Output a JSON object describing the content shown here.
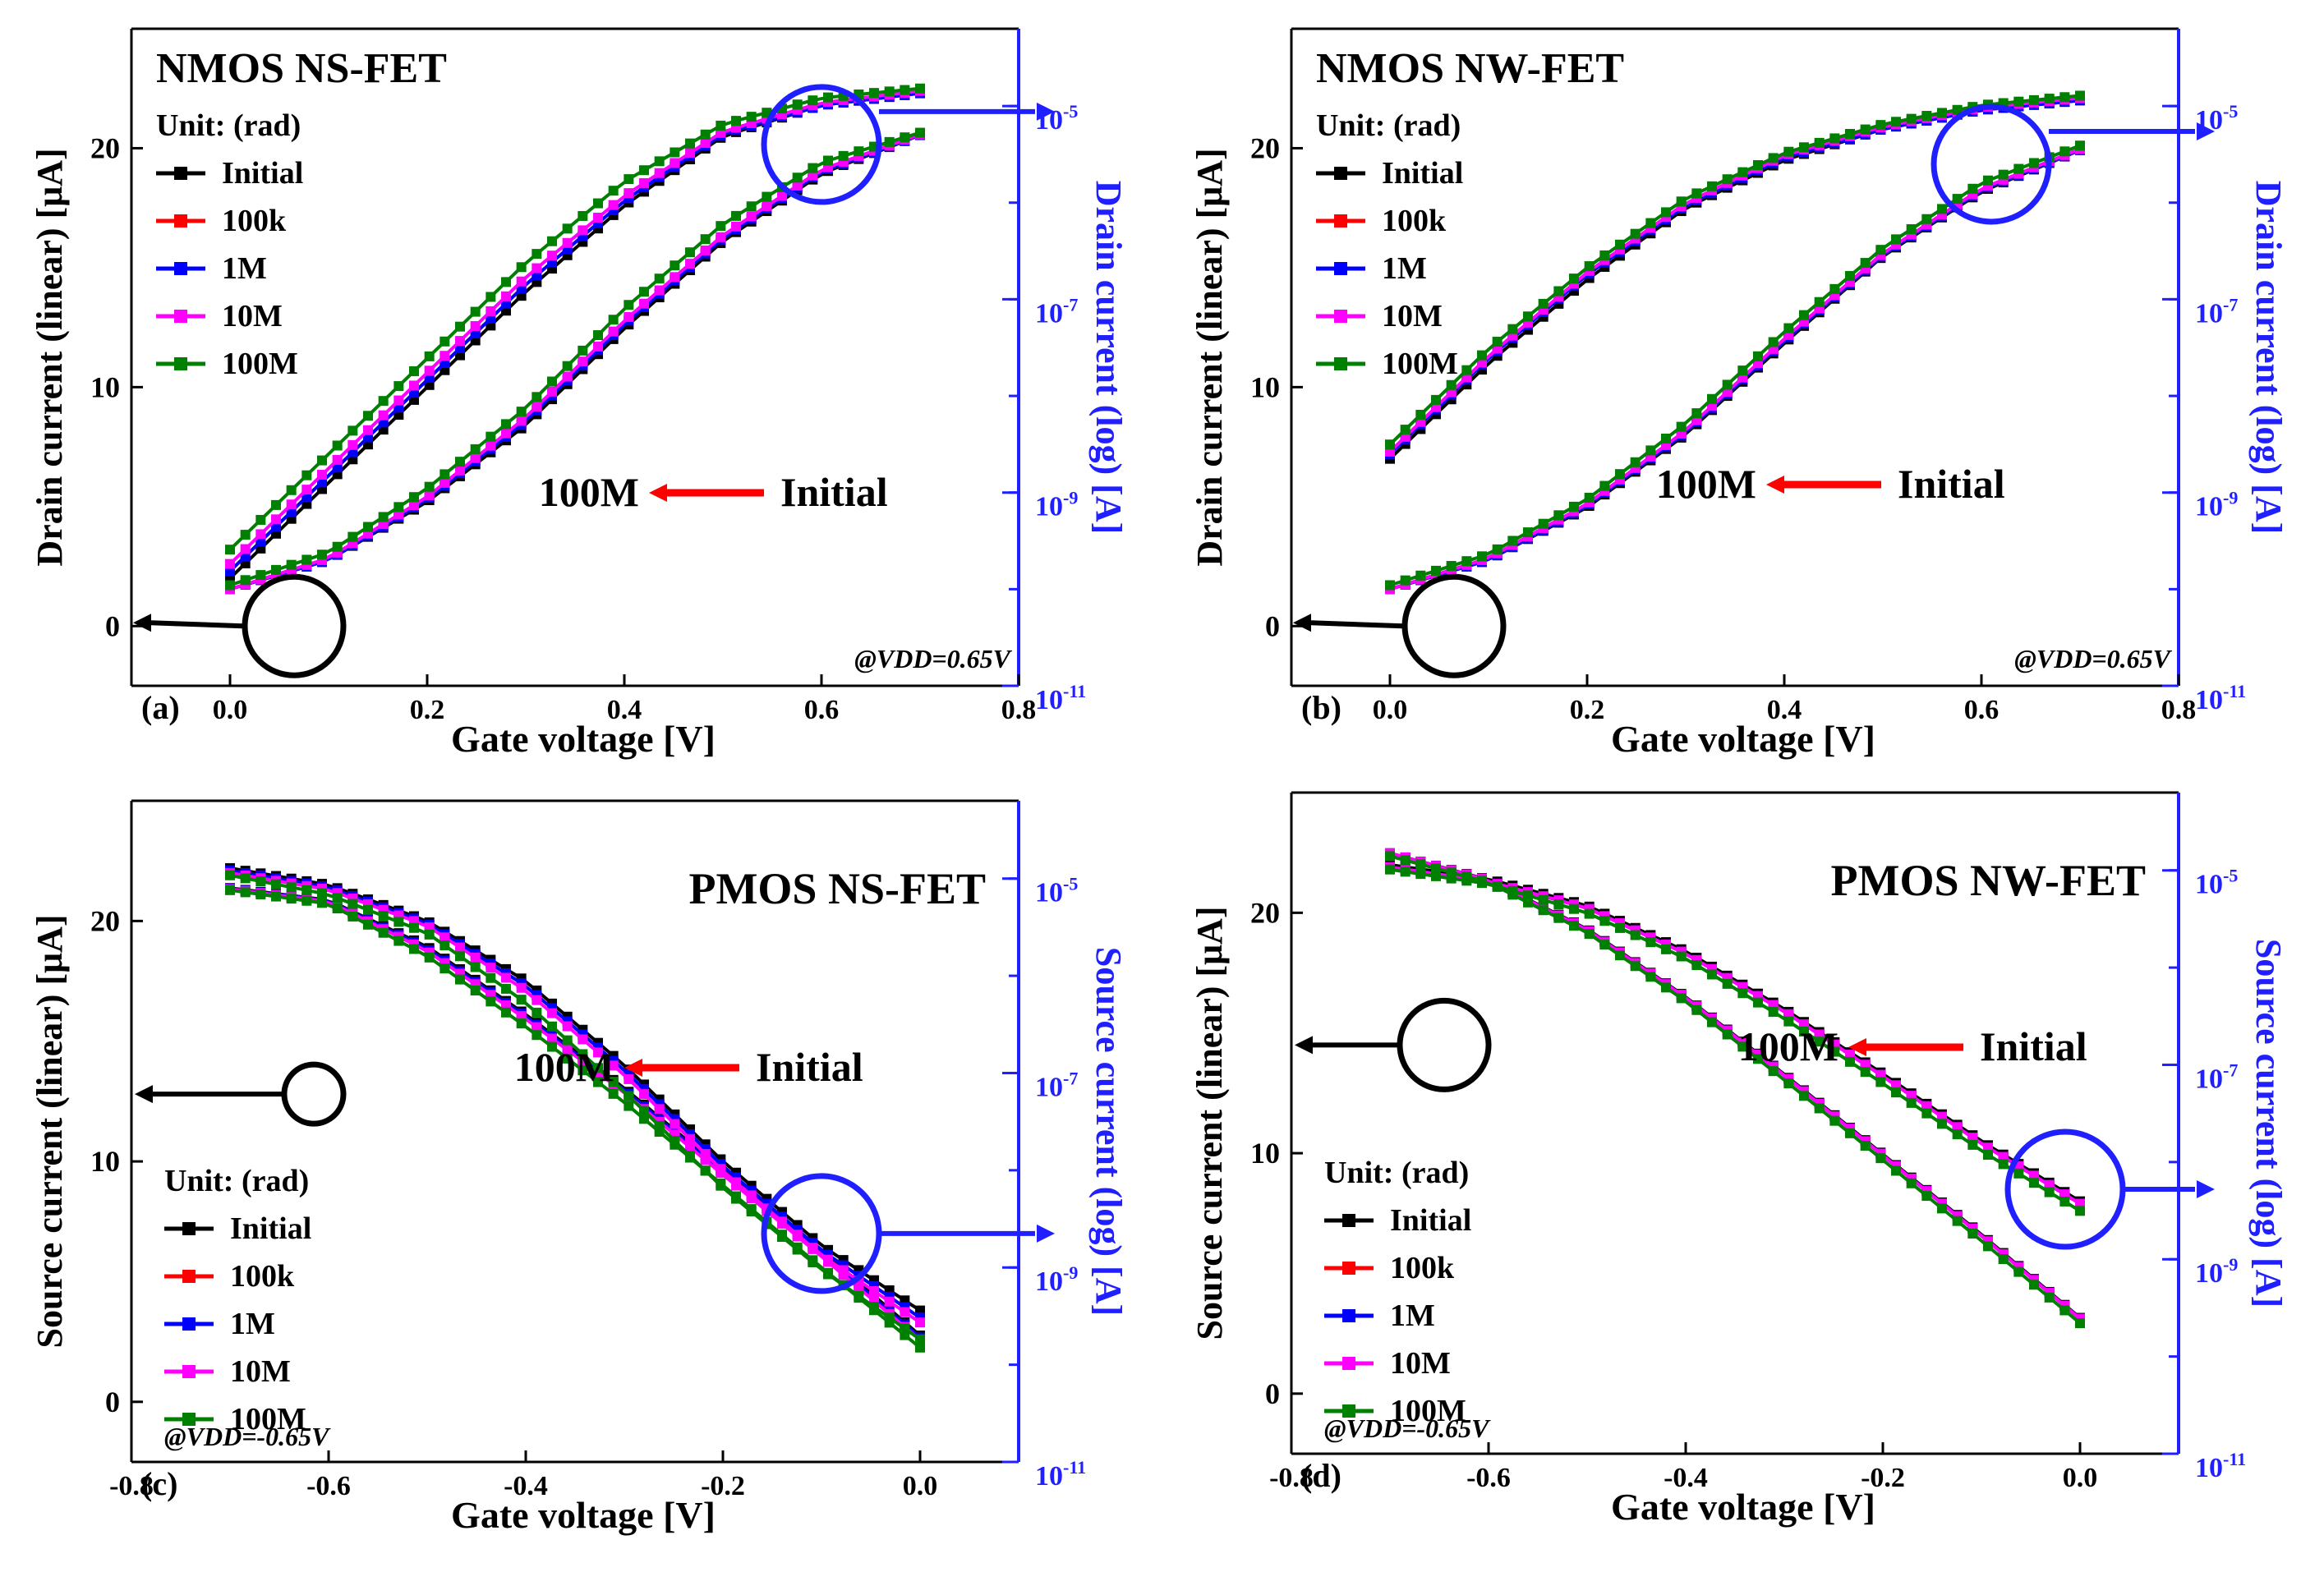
{
  "figure": {
    "colors": {
      "initial": "#000000",
      "100k": "#ff0000",
      "1M": "#0000ff",
      "10M": "#ff00ff",
      "100M": "#008000",
      "log_axis": "#1f1fff",
      "arrow": "#ff0000"
    }
  },
  "chart_data": [
    {
      "type": "line",
      "panel_label": "(a)",
      "title": "NMOS NS-FET",
      "xlabel": "Gate voltage [V]",
      "ylabel": "Drain current (linear) [μA]",
      "y2label": "Drain current (log) [A]",
      "xlim": [
        -0.1,
        0.8
      ],
      "ylim": [
        -2.5,
        25
      ],
      "xticks": [
        "0.0",
        "0.2",
        "0.4",
        "0.6",
        "0.8"
      ],
      "yticks": [
        "0",
        "10",
        "20"
      ],
      "y2ticks": [
        "10-11",
        "10-9",
        "10-7",
        "10-5"
      ],
      "legend_title": "Unit: (rad)",
      "legend_position": "top-left",
      "annotation_from": "Initial",
      "annotation_to": "100M",
      "bias_note": "@VDD=0.65V",
      "x": [
        0.0,
        0.1,
        0.2,
        0.3,
        0.4,
        0.5,
        0.6,
        0.7
      ],
      "series": [
        {
          "name": "Initial",
          "linear": [
            2.0,
            6.0,
            10.0,
            14.0,
            17.6,
            20.5,
            21.8,
            22.3
          ],
          "log": [
            1e-10,
            2e-10,
            8e-10,
            5e-09,
            5e-08,
            4e-07,
            2e-06,
            5e-06
          ]
        },
        {
          "name": "100k",
          "linear": [
            2.3,
            6.3,
            10.3,
            14.3,
            17.8,
            20.6,
            21.8,
            22.3
          ],
          "log": [
            1e-10,
            2e-10,
            8.5e-10,
            5.5e-09,
            5.5e-08,
            4.3e-07,
            2.1e-06,
            5e-06
          ]
        },
        {
          "name": "1M",
          "linear": [
            2.3,
            6.3,
            10.3,
            14.3,
            17.8,
            20.6,
            21.8,
            22.3
          ],
          "log": [
            1e-10,
            2e-10,
            8.5e-10,
            5.5e-09,
            5.5e-08,
            4.3e-07,
            2.1e-06,
            5e-06
          ]
        },
        {
          "name": "10M",
          "linear": [
            2.6,
            6.6,
            10.6,
            14.6,
            18.0,
            20.7,
            21.9,
            22.4
          ],
          "log": [
            1e-10,
            2.1e-10,
            9e-10,
            6e-09,
            6e-08,
            4.6e-07,
            2.2e-06,
            5.1e-06
          ]
        },
        {
          "name": "100M",
          "linear": [
            3.2,
            7.2,
            11.2,
            15.2,
            18.6,
            21.0,
            22.1,
            22.5
          ],
          "log": [
            1.1e-10,
            2.4e-10,
            1.1e-09,
            7.5e-09,
            8e-08,
            6e-07,
            2.6e-06,
            5.3e-06
          ]
        }
      ]
    },
    {
      "type": "line",
      "panel_label": "(b)",
      "title": "NMOS NW-FET",
      "xlabel": "Gate voltage [V]",
      "ylabel": "Drain current (linear) [μA]",
      "y2label": "Drain current (log) [A]",
      "xlim": [
        -0.1,
        0.8
      ],
      "ylim": [
        -2.5,
        25
      ],
      "xticks": [
        "0.0",
        "0.2",
        "0.4",
        "0.6",
        "0.8"
      ],
      "yticks": [
        "0",
        "10",
        "20"
      ],
      "y2ticks": [
        "10-11",
        "10-9",
        "10-7",
        "10-5"
      ],
      "legend_title": "Unit: (rad)",
      "legend_position": "top-left",
      "annotation_from": "Initial",
      "annotation_to": "100M",
      "bias_note": "@VDD=0.65V",
      "x": [
        0.0,
        0.1,
        0.2,
        0.3,
        0.4,
        0.5,
        0.6,
        0.7
      ],
      "series": [
        {
          "name": "Initial",
          "linear": [
            7.0,
            11.0,
            14.5,
            17.5,
            19.5,
            20.8,
            21.6,
            22.0
          ],
          "log": [
            1e-10,
            2e-10,
            7e-10,
            4e-09,
            3.5e-08,
            2.8e-07,
            1.3e-06,
            3.5e-06
          ]
        },
        {
          "name": "100k",
          "linear": [
            7.2,
            11.2,
            14.7,
            17.6,
            19.6,
            20.8,
            21.6,
            22.0
          ],
          "log": [
            1e-10,
            2e-10,
            7.3e-10,
            4.2e-09,
            3.7e-08,
            2.9e-07,
            1.35e-06,
            3.5e-06
          ]
        },
        {
          "name": "1M",
          "linear": [
            7.2,
            11.2,
            14.7,
            17.6,
            19.6,
            20.8,
            21.6,
            22.0
          ],
          "log": [
            1e-10,
            2e-10,
            7.3e-10,
            4.2e-09,
            3.7e-08,
            2.9e-07,
            1.35e-06,
            3.5e-06
          ]
        },
        {
          "name": "10M",
          "linear": [
            7.3,
            11.3,
            14.8,
            17.7,
            19.7,
            20.9,
            21.7,
            22.1
          ],
          "log": [
            1e-10,
            2.1e-10,
            7.6e-10,
            4.4e-09,
            3.9e-08,
            3e-07,
            1.4e-06,
            3.6e-06
          ]
        },
        {
          "name": "100M",
          "linear": [
            7.6,
            11.6,
            15.0,
            17.9,
            19.8,
            21.0,
            21.8,
            22.2
          ],
          "log": [
            1.1e-10,
            2.3e-10,
            8.5e-10,
            5.2e-09,
            4.6e-08,
            3.4e-07,
            1.6e-06,
            3.9e-06
          ]
        }
      ]
    },
    {
      "type": "line",
      "panel_label": "(c)",
      "title": "PMOS NS-FET",
      "xlabel": "Gate voltage [V]",
      "ylabel": "Source current (linear) [μA]",
      "y2label": "Source current (log) [A]",
      "xlim": [
        -0.8,
        0.1
      ],
      "ylim": [
        -2.5,
        25
      ],
      "xticks": [
        "-0.8",
        "-0.6",
        "-0.4",
        "-0.2",
        "0.0"
      ],
      "yticks": [
        "0",
        "10",
        "20"
      ],
      "y2ticks": [
        "10-11",
        "10-9",
        "10-7",
        "10-5"
      ],
      "legend_title": "Unit: (rad)",
      "legend_position": "bottom-left",
      "annotation_from": "Initial",
      "annotation_to": "100M",
      "bias_note": "@VDD=-0.65V",
      "x": [
        -0.7,
        -0.6,
        -0.5,
        -0.4,
        -0.3,
        -0.2,
        -0.1,
        0.0
      ],
      "series": [
        {
          "name": "Initial",
          "linear": [
            22.2,
            21.5,
            20.0,
            17.5,
            14.0,
            10.0,
            6.5,
            3.8
          ],
          "log": [
            8e-06,
            6e-06,
            2e-06,
            4e-07,
            7e-08,
            1e-08,
            1.5e-09,
            2e-10
          ]
        },
        {
          "name": "100k",
          "linear": [
            22.1,
            21.4,
            19.9,
            17.3,
            13.8,
            9.8,
            6.3,
            3.5
          ],
          "log": [
            7.9e-06,
            5.9e-06,
            1.9e-06,
            3.8e-07,
            6.7e-08,
            9.5e-09,
            1.4e-09,
            1.9e-10
          ]
        },
        {
          "name": "1M",
          "linear": [
            22.1,
            21.4,
            19.9,
            17.3,
            13.8,
            9.8,
            6.3,
            3.5
          ],
          "log": [
            7.9e-06,
            5.9e-06,
            1.9e-06,
            3.8e-07,
            6.7e-08,
            9.5e-09,
            1.4e-09,
            1.9e-10
          ]
        },
        {
          "name": "10M",
          "linear": [
            22.0,
            21.3,
            19.8,
            17.1,
            13.6,
            9.6,
            6.1,
            3.3
          ],
          "log": [
            7.8e-06,
            5.8e-06,
            1.8e-06,
            3.6e-07,
            6.3e-08,
            9e-09,
            1.3e-09,
            1.8e-10
          ]
        },
        {
          "name": "100M",
          "linear": [
            21.9,
            21.1,
            19.5,
            16.6,
            12.9,
            8.9,
            5.5,
            2.6
          ],
          "log": [
            7.6e-06,
            5.5e-06,
            1.6e-06,
            3e-07,
            5e-08,
            7e-09,
            1e-09,
            1.5e-10
          ]
        }
      ]
    },
    {
      "type": "line",
      "panel_label": "(d)",
      "title": "PMOS NW-FET",
      "xlabel": "Gate voltage [V]",
      "ylabel": "Source current (linear) [μA]",
      "y2label": "Source current (log) [A]",
      "xlim": [
        -0.8,
        0.1
      ],
      "ylim": [
        -2.5,
        25
      ],
      "xticks": [
        "-0.8",
        "-0.6",
        "-0.4",
        "-0.2",
        "0.0"
      ],
      "yticks": [
        "0",
        "10",
        "20"
      ],
      "y2ticks": [
        "10-11",
        "10-9",
        "10-7",
        "10-5"
      ],
      "legend_title": "Unit: (rad)",
      "legend_position": "bottom-left",
      "annotation_from": "Initial",
      "annotation_to": "100M",
      "bias_note": "@VDD=-0.65V",
      "x": [
        -0.7,
        -0.6,
        -0.5,
        -0.4,
        -0.3,
        -0.2,
        -0.1,
        0.0
      ],
      "series": [
        {
          "name": "Initial",
          "linear": [
            22.0,
            21.4,
            20.3,
            18.4,
            16.0,
            13.3,
            10.5,
            8.0
          ],
          "log": [
            1.5e-05,
            8e-06,
            2.5e-06,
            5e-07,
            8e-08,
            1.2e-08,
            1.8e-09,
            2.5e-10
          ]
        },
        {
          "name": "100k",
          "linear": [
            21.9,
            21.3,
            20.2,
            18.3,
            15.9,
            13.2,
            10.4,
            7.9
          ],
          "log": [
            1.5e-05,
            7.9e-06,
            2.45e-06,
            4.9e-07,
            7.8e-08,
            1.17e-08,
            1.75e-09,
            2.45e-10
          ]
        },
        {
          "name": "1M",
          "linear": [
            21.9,
            21.3,
            20.2,
            18.3,
            15.9,
            13.2,
            10.4,
            7.9
          ],
          "log": [
            1.5e-05,
            7.9e-06,
            2.45e-06,
            4.9e-07,
            7.8e-08,
            1.17e-08,
            1.75e-09,
            2.45e-10
          ]
        },
        {
          "name": "10M",
          "linear": [
            21.9,
            21.3,
            20.2,
            18.3,
            15.9,
            13.2,
            10.4,
            7.9
          ],
          "log": [
            1.5e-05,
            7.9e-06,
            2.45e-06,
            4.9e-07,
            7.8e-08,
            1.17e-08,
            1.75e-09,
            2.45e-10
          ]
        },
        {
          "name": "100M",
          "linear": [
            21.8,
            21.2,
            20.0,
            18.1,
            15.6,
            12.9,
            10.1,
            7.6
          ],
          "log": [
            1.4e-05,
            7.5e-06,
            2.3e-06,
            4.5e-07,
            7e-08,
            1.05e-08,
            1.55e-09,
            2.2e-10
          ]
        }
      ]
    }
  ]
}
